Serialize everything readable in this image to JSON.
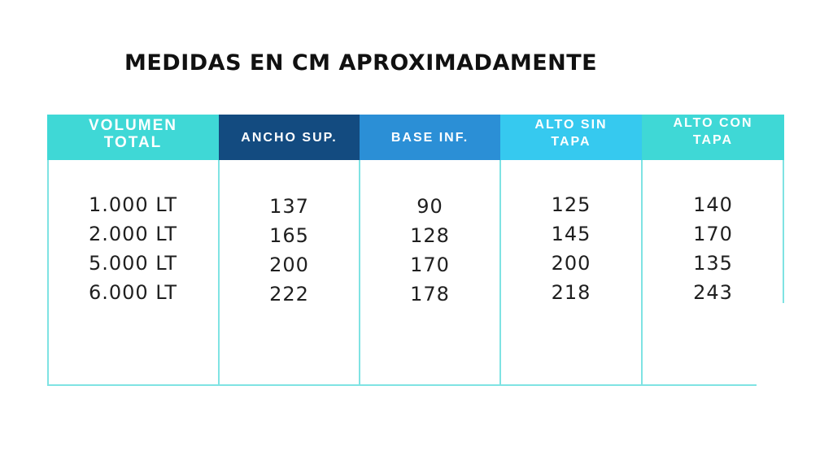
{
  "title": "MEDIDAS EN CM APROXIMADAMENTE",
  "table": {
    "headers": [
      {
        "line1": "VOLUMEN",
        "line2": "TOTAL"
      },
      {
        "line1": "ANCHO SUP.",
        "line2": ""
      },
      {
        "line1": "BASE INF.",
        "line2": ""
      },
      {
        "line1": "ALTO SIN",
        "line2": "TAPA"
      },
      {
        "line1": "ALTO CON",
        "line2": "TAPA"
      }
    ],
    "header_colors": [
      "#3fd8d6",
      "#134b80",
      "#2b8fd6",
      "#36c9ef",
      "#3fd8d6"
    ],
    "columns": [
      [
        "1.000 LT",
        "2.000 LT",
        "5.000 LT",
        "6.000 LT"
      ],
      [
        "137",
        "165",
        "200",
        "222"
      ],
      [
        "90",
        "128",
        "170",
        "178"
      ],
      [
        "125",
        "145",
        "200",
        "218"
      ],
      [
        "140",
        "170",
        "135",
        "243"
      ]
    ]
  }
}
